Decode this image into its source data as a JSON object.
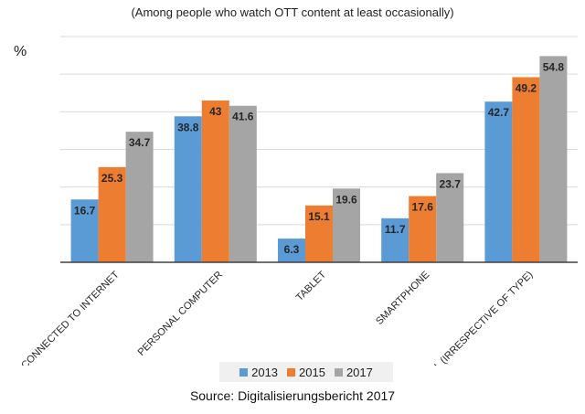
{
  "subtitle": "(Among people who watch OTT content at least occasionally)",
  "unit": "%",
  "source": "Source: Digitalisierungsbericht 2017",
  "colors": {
    "2013": "#5b9bd5",
    "2015": "#ed7d31",
    "2017": "#a5a5a5"
  },
  "chart_data": {
    "type": "bar",
    "categories": [
      "TV CONNECTED TO INTERNET",
      "PERSONAL COMPUTER",
      "TABLET",
      "SMARTPHONE",
      "ALL (IRRESPECTIVE OF TYPE)"
    ],
    "series": [
      {
        "name": "2013",
        "values": [
          16.7,
          38.8,
          6.3,
          11.7,
          42.7
        ]
      },
      {
        "name": "2015",
        "values": [
          25.3,
          43,
          15.1,
          17.6,
          49.2
        ]
      },
      {
        "name": "2017",
        "values": [
          34.7,
          41.6,
          19.6,
          23.7,
          54.8
        ]
      }
    ],
    "ylim": [
      0,
      60
    ],
    "grid": true,
    "legend_position": "bottom",
    "data_labels": true
  }
}
